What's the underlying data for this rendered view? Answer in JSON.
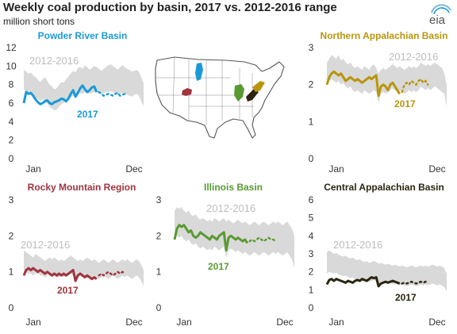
{
  "title": "Weekly coal production by basin, 2017 vs. 2012-2016 range",
  "subtitle": "million short tons",
  "logo_text": "eia",
  "colors": {
    "range": "#d9d9d9",
    "powder_river": "#1a9ad6",
    "northern_appalachian": "#b8960c",
    "rocky_mountain": "#a0343f",
    "illinois": "#5a9a32",
    "central_appalachian": "#2b2510"
  },
  "chart_data": [
    {
      "type": "area",
      "title": "Powder River Basin",
      "range_label": "2012-2016",
      "series_label": "2017",
      "x_tick_labels": [
        "Jan",
        "Dec"
      ],
      "y_ticks": [
        0,
        2,
        4,
        6,
        8,
        10,
        12
      ],
      "ylim": [
        0,
        12
      ],
      "x_weeks": [
        1,
        52
      ],
      "range_upper": [
        9.6,
        9.4,
        9.2,
        9.3,
        9.0,
        8.8,
        8.5,
        8.3,
        8.6,
        8.8,
        8.4,
        8.0,
        7.8,
        7.5,
        7.6,
        8.0,
        8.3,
        8.2,
        8.6,
        8.9,
        9.2,
        9.5,
        9.3,
        9.8,
        9.9,
        9.7,
        10.1,
        9.9,
        9.6,
        9.8,
        10.0,
        9.9,
        9.7,
        9.5,
        9.7,
        9.9,
        10.1,
        10.2,
        10.0,
        9.8,
        9.6,
        9.9,
        10.1,
        9.9,
        9.7,
        9.6,
        9.4,
        9.5,
        9.6,
        9.4,
        8.8,
        8.2
      ],
      "range_lower": [
        7.5,
        7.2,
        6.9,
        7.0,
        6.8,
        6.6,
        6.5,
        6.2,
        6.4,
        6.3,
        6.0,
        5.6,
        5.4,
        5.2,
        5.3,
        5.6,
        5.9,
        6.0,
        6.2,
        6.4,
        6.6,
        6.8,
        6.9,
        7.0,
        7.1,
        7.0,
        7.2,
        7.1,
        7.0,
        7.1,
        7.2,
        7.1,
        7.0,
        7.0,
        7.1,
        7.2,
        7.2,
        7.3,
        7.2,
        7.0,
        6.9,
        7.0,
        7.1,
        7.0,
        6.9,
        6.8,
        6.7,
        6.9,
        7.0,
        6.8,
        6.2,
        5.7
      ],
      "actual": [
        6.0,
        7.2,
        7.0,
        7.1,
        6.8,
        6.4,
        6.1,
        5.9,
        6.0,
        6.2,
        6.3,
        6.0,
        5.9,
        6.1,
        6.2,
        6.3,
        6.5,
        6.4,
        6.2,
        6.5,
        7.0,
        7.4,
        6.7,
        7.1,
        7.6,
        7.9,
        7.5,
        7.2,
        7.4,
        7.7,
        7.8,
        7.2
      ],
      "forecast": [
        7.2,
        7.0,
        6.8,
        6.9,
        7.0,
        6.9,
        6.8,
        7.0,
        7.1,
        6.8,
        6.9,
        7.0
      ]
    },
    {
      "type": "area",
      "title": "Northern Appalachian Basin",
      "range_label": "2012-2016",
      "series_label": "2017",
      "x_tick_labels": [
        "Jan",
        "Dec"
      ],
      "y_ticks": [
        0,
        1,
        2,
        3
      ],
      "ylim": [
        0,
        3
      ],
      "x_weeks": [
        1,
        52
      ],
      "range_upper": [
        2.6,
        2.7,
        2.8,
        2.75,
        2.7,
        2.8,
        2.65,
        2.7,
        2.6,
        2.55,
        2.6,
        2.5,
        2.45,
        2.5,
        2.45,
        2.4,
        2.5,
        2.45,
        2.4,
        2.5,
        2.55,
        2.45,
        2.3,
        2.4,
        2.45,
        2.4,
        2.45,
        2.5,
        2.55,
        2.5,
        2.45,
        2.5,
        2.45,
        2.4,
        2.45,
        2.5,
        2.45,
        2.5,
        2.45,
        2.5,
        2.6,
        2.55,
        2.5,
        2.55,
        2.5,
        2.55,
        2.6,
        2.55,
        2.5,
        2.45,
        2.3,
        2.0
      ],
      "range_lower": [
        2.0,
        2.1,
        2.15,
        2.1,
        2.05,
        2.1,
        2.0,
        2.05,
        1.95,
        1.9,
        1.95,
        1.85,
        1.8,
        1.85,
        1.8,
        1.75,
        1.85,
        1.8,
        1.75,
        1.8,
        1.85,
        1.8,
        1.5,
        1.75,
        1.8,
        1.75,
        1.8,
        1.85,
        1.9,
        1.85,
        1.8,
        1.85,
        1.8,
        1.75,
        1.8,
        1.85,
        1.8,
        1.85,
        1.8,
        1.85,
        1.95,
        1.9,
        1.85,
        1.9,
        1.85,
        1.9,
        1.95,
        1.9,
        1.85,
        1.8,
        1.75,
        1.4
      ],
      "actual": [
        2.0,
        2.2,
        2.3,
        2.35,
        2.3,
        2.25,
        2.3,
        2.2,
        2.1,
        2.15,
        2.2,
        2.15,
        2.1,
        2.15,
        2.1,
        2.05,
        2.1,
        2.15,
        2.2,
        2.15,
        2.2,
        2.25,
        1.7,
        1.95,
        2.0,
        1.95,
        1.85,
        2.0,
        2.05,
        1.95,
        1.85,
        1.75
      ],
      "forecast": [
        1.8,
        2.0,
        2.05,
        2.0,
        2.1,
        2.05,
        2.0,
        2.1,
        2.15,
        2.05,
        2.1,
        2.0
      ]
    },
    {
      "type": "area",
      "title": "Rocky Mountain Region",
      "range_label": "2012-2016",
      "series_label": "2017",
      "x_tick_labels": [
        "Jan",
        "Dec"
      ],
      "y_ticks": [
        0,
        1,
        2,
        3
      ],
      "ylim": [
        0,
        3
      ],
      "x_weeks": [
        1,
        52
      ],
      "range_upper": [
        1.6,
        1.55,
        1.5,
        1.45,
        1.4,
        1.5,
        1.45,
        1.4,
        1.35,
        1.3,
        1.35,
        1.4,
        1.35,
        1.4,
        1.35,
        1.3,
        1.35,
        1.3,
        1.35,
        1.4,
        1.45,
        1.4,
        1.35,
        1.3,
        1.35,
        1.3,
        1.35,
        1.4,
        1.35,
        1.3,
        1.35,
        1.3,
        1.25,
        1.3,
        1.35,
        1.3,
        1.25,
        1.3,
        1.35,
        1.3,
        1.25,
        1.3,
        1.35,
        1.3,
        1.35,
        1.3,
        1.25,
        1.3,
        1.35,
        1.3,
        1.2,
        1.05
      ],
      "range_lower": [
        1.0,
        1.0,
        0.95,
        0.95,
        0.9,
        0.95,
        0.95,
        0.9,
        0.9,
        0.85,
        0.9,
        0.9,
        0.85,
        0.9,
        0.85,
        0.85,
        0.9,
        0.85,
        0.9,
        0.9,
        0.95,
        0.9,
        0.7,
        0.85,
        0.9,
        0.85,
        0.85,
        0.9,
        0.85,
        0.85,
        0.9,
        0.85,
        0.8,
        0.85,
        0.9,
        0.85,
        0.8,
        0.85,
        0.9,
        0.85,
        0.8,
        0.85,
        0.9,
        0.85,
        0.9,
        0.85,
        0.8,
        0.85,
        0.9,
        0.85,
        0.75,
        0.6
      ],
      "actual": [
        0.9,
        1.05,
        1.1,
        1.05,
        1.1,
        1.05,
        1.0,
        1.05,
        1.0,
        0.95,
        1.0,
        0.95,
        0.9,
        0.95,
        0.9,
        0.95,
        0.9,
        0.95,
        0.9,
        0.95,
        1.0,
        1.05,
        0.75,
        0.9,
        0.95,
        0.9,
        0.85,
        0.9,
        0.85,
        0.8,
        0.85,
        0.8
      ],
      "forecast": [
        0.9,
        0.95,
        0.9,
        0.95,
        1.0,
        0.95,
        0.9,
        0.95,
        1.0,
        0.95,
        1.0,
        0.95
      ]
    },
    {
      "type": "area",
      "title": "Illinois Basin",
      "range_label": "2012-2016",
      "series_label": "2017",
      "x_tick_labels": [
        "Jan",
        "Dec"
      ],
      "y_ticks": [
        0,
        1,
        2,
        3
      ],
      "ylim": [
        0,
        3
      ],
      "x_weeks": [
        1,
        52
      ],
      "range_upper": [
        2.7,
        2.8,
        2.75,
        2.8,
        2.7,
        2.65,
        2.7,
        2.6,
        2.55,
        2.6,
        2.5,
        2.45,
        2.5,
        2.45,
        2.4,
        2.45,
        2.4,
        2.5,
        2.45,
        2.4,
        2.45,
        2.5,
        2.4,
        2.45,
        2.4,
        2.35,
        2.4,
        2.45,
        2.4,
        2.35,
        2.4,
        2.35,
        2.3,
        2.35,
        2.4,
        2.35,
        2.3,
        2.35,
        2.4,
        2.35,
        2.3,
        2.35,
        2.4,
        2.35,
        2.4,
        2.35,
        2.3,
        2.35,
        2.4,
        2.3,
        2.2,
        2.0
      ],
      "range_lower": [
        1.9,
        2.0,
        1.95,
        2.0,
        1.9,
        1.85,
        1.9,
        1.8,
        1.75,
        1.8,
        1.7,
        1.65,
        1.7,
        1.65,
        1.6,
        1.65,
        1.6,
        1.7,
        1.65,
        1.6,
        1.65,
        1.7,
        1.4,
        1.6,
        1.65,
        1.6,
        1.55,
        1.6,
        1.55,
        1.5,
        1.55,
        1.5,
        1.45,
        1.5,
        1.55,
        1.5,
        1.45,
        1.5,
        1.55,
        1.5,
        1.45,
        1.5,
        1.55,
        1.5,
        1.55,
        1.5,
        1.45,
        1.5,
        1.55,
        1.45,
        1.35,
        1.1
      ],
      "actual": [
        1.9,
        2.2,
        2.3,
        2.25,
        2.3,
        2.2,
        2.1,
        2.15,
        2.0,
        1.95,
        2.0,
        2.1,
        2.05,
        2.0,
        1.95,
        1.9,
        2.0,
        1.95,
        1.9,
        2.0,
        2.05,
        2.1,
        1.6,
        1.95,
        2.0,
        1.95,
        1.9,
        1.95,
        1.9,
        1.85,
        1.9,
        1.8
      ],
      "forecast": [
        1.85,
        1.9,
        1.85,
        1.9,
        1.95,
        1.9,
        1.85,
        1.9,
        1.95,
        1.9,
        1.9,
        1.85
      ]
    },
    {
      "type": "area",
      "title": "Central Appalachian Basin",
      "range_label": "2012-2016",
      "series_label": "2017",
      "x_tick_labels": [
        "Jan",
        "Dec"
      ],
      "y_ticks": [
        0,
        1,
        2,
        3,
        4,
        5,
        6
      ],
      "ylim": [
        0,
        6
      ],
      "x_weeks": [
        1,
        52
      ],
      "range_upper": [
        3.1,
        3.2,
        3.1,
        3.0,
        3.05,
        2.95,
        2.9,
        2.85,
        2.9,
        2.8,
        2.75,
        2.8,
        2.7,
        2.65,
        2.7,
        2.6,
        2.55,
        2.6,
        2.5,
        2.55,
        2.6,
        2.55,
        2.45,
        2.5,
        2.45,
        2.4,
        2.45,
        2.4,
        2.35,
        2.4,
        2.35,
        2.3,
        2.35,
        2.3,
        2.25,
        2.3,
        2.35,
        2.3,
        2.25,
        2.3,
        2.35,
        2.3,
        2.35,
        2.3,
        2.35,
        2.4,
        2.35,
        2.3,
        2.35,
        2.3,
        2.2,
        1.9
      ],
      "range_lower": [
        1.9,
        2.0,
        1.95,
        1.9,
        1.95,
        1.85,
        1.8,
        1.75,
        1.8,
        1.7,
        1.65,
        1.7,
        1.6,
        1.55,
        1.6,
        1.5,
        1.45,
        1.5,
        1.45,
        1.5,
        1.55,
        1.5,
        1.3,
        1.45,
        1.4,
        1.35,
        1.4,
        1.35,
        1.3,
        1.35,
        1.3,
        1.25,
        1.3,
        1.25,
        1.2,
        1.25,
        1.3,
        1.25,
        1.2,
        1.25,
        1.3,
        1.25,
        1.3,
        1.25,
        1.3,
        1.35,
        1.3,
        1.25,
        1.3,
        1.25,
        1.15,
        0.9
      ],
      "actual": [
        1.3,
        1.55,
        1.6,
        1.5,
        1.6,
        1.55,
        1.5,
        1.45,
        1.4,
        1.5,
        1.45,
        1.4,
        1.5,
        1.55,
        1.5,
        1.6,
        1.55,
        1.5,
        1.6,
        1.7,
        1.65,
        1.7,
        1.2,
        1.35,
        1.4,
        1.45,
        1.4,
        1.45,
        1.5,
        1.45,
        1.4,
        1.35
      ],
      "forecast": [
        1.35,
        1.4,
        1.35,
        1.4,
        1.45,
        1.4,
        1.35,
        1.4,
        1.45,
        1.4,
        1.45,
        1.4
      ]
    }
  ]
}
